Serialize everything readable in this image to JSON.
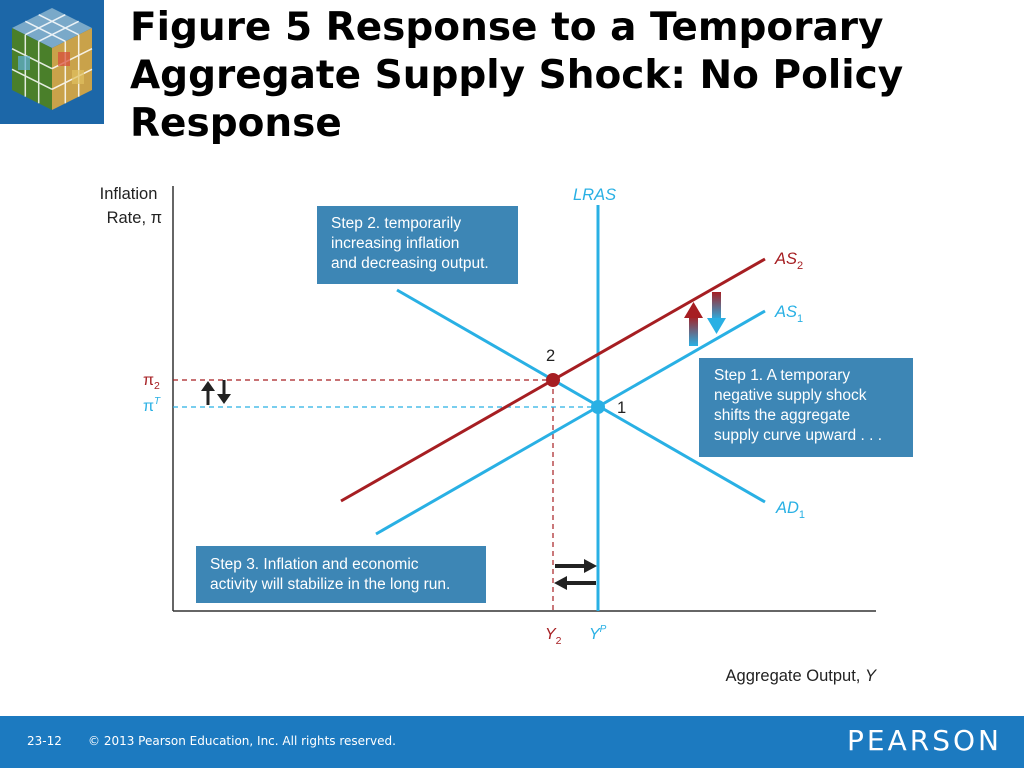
{
  "title": "Figure 5  Response to a Temporary\nAggregate Supply Shock: No Policy\nResponse",
  "logo": {
    "icon": "rubiks-cube-logo-icon"
  },
  "diagram": {
    "y_axis_label": "Inflation\nRate, π",
    "x_axis_label": "Aggregate Output, ",
    "x_axis_var": "Y",
    "curves": {
      "lras": "LRAS",
      "as2_main": "AS",
      "as2_sub": "2",
      "as1_main": "AS",
      "as1_sub": "1",
      "ad1_main": "AD",
      "ad1_sub": "1"
    },
    "points": {
      "p1": "1",
      "p2": "2"
    },
    "y_ticks": {
      "pi2_main": "π",
      "pi2_sub": "2",
      "piT_main": "π",
      "piT_sup": "T"
    },
    "x_ticks": {
      "y2_main": "Y",
      "y2_sub": "2",
      "yp_main": "Y",
      "yp_sup": "P"
    },
    "steps": {
      "step1": "Step 1. A temporary\nnegative supply shock\nshifts the aggregate\nsupply curve upward . . .",
      "step2": "Step 2. temporarily\nincreasing inflation\nand decreasing output.",
      "step3": "Step 3. Inflation and economic\nactivity will stabilize in the long run."
    },
    "colors": {
      "blue_curve": "#29b0e4",
      "red_curve": "#a61e22",
      "box": "#3d86b5",
      "axis": "#333333"
    }
  },
  "footer": {
    "page": "23-12",
    "copyright": "© 2013 Pearson Education, Inc. All rights reserved.",
    "brand": "PEARSON"
  }
}
